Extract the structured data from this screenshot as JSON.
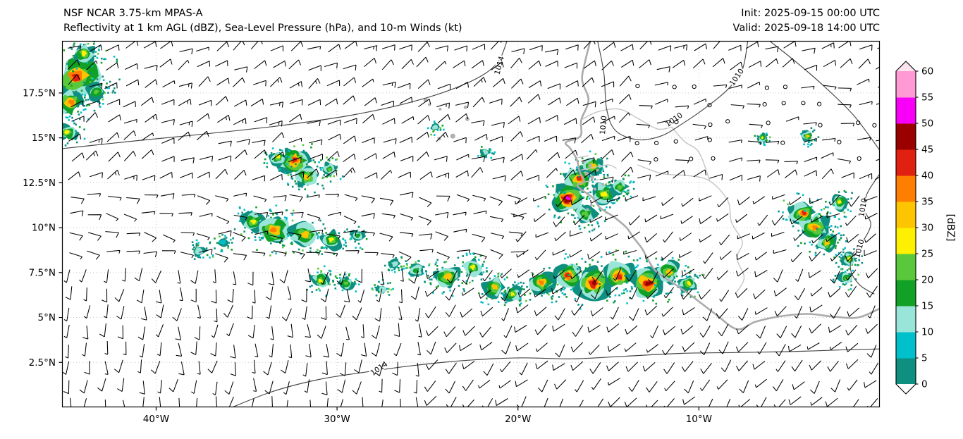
{
  "header": {
    "model": "NSF NCAR 3.75-km MPAS-A",
    "subtitle": "Reflectivity at 1 km AGL (dBZ), Sea-Level Pressure (hPa), and 10-m Winds (kt)",
    "init": "Init: 2025-09-15 00:00 UTC",
    "valid": "Valid: 2025-09-18 14:00 UTC"
  },
  "axes": {
    "lon_min": -45.2,
    "lon_max": 0,
    "lat_min": 0,
    "lat_max": 20.4,
    "x_ticks": [
      {
        "label": "40°W",
        "lon": -40
      },
      {
        "label": "30°W",
        "lon": -30
      },
      {
        "label": "20°W",
        "lon": -20
      },
      {
        "label": "10°W",
        "lon": -10
      }
    ],
    "y_ticks": [
      {
        "label": "17.5°N",
        "lat": 17.5
      },
      {
        "label": "15°N",
        "lat": 15
      },
      {
        "label": "12.5°N",
        "lat": 12.5
      },
      {
        "label": "10°N",
        "lat": 10
      },
      {
        "label": "7.5°N",
        "lat": 7.5
      },
      {
        "label": "5°N",
        "lat": 5
      },
      {
        "label": "2.5°N",
        "lat": 2.5
      }
    ]
  },
  "colorbar": {
    "label": "[dBZ]",
    "tick_values": [
      0,
      5,
      10,
      15,
      20,
      25,
      30,
      35,
      40,
      45,
      50,
      55,
      60
    ],
    "segment_colors": [
      "#0e8f80",
      "#00c0cc",
      "#9ae5da",
      "#12a127",
      "#59c93b",
      "#fdf000",
      "#fdc500",
      "#fd7e00",
      "#e02010",
      "#9a0000",
      "#f800f8",
      "#ff9ad5"
    ],
    "under_color": "#ffffff",
    "over_color": "#fbe3ee"
  },
  "chart_data": {
    "type": "heatmap",
    "title": "Reflectivity at 1 km AGL (dBZ), Sea-Level Pressure (hPa), and 10-m Winds (kt)",
    "units": {
      "reflectivity": "dBZ",
      "pressure": "hPa",
      "wind": "kt"
    },
    "reflectivity_range_dbz": [
      0,
      60
    ],
    "domain": {
      "lon": [
        -45.2,
        0
      ],
      "lat": [
        0,
        20.4
      ]
    },
    "isobars": [
      {
        "value": 1014,
        "points": [
          [
            -45.2,
            14.4
          ],
          [
            -41,
            14.85
          ],
          [
            -37,
            15.25
          ],
          [
            -33,
            15.7
          ],
          [
            -29,
            16.3
          ],
          [
            -25.5,
            17.1
          ],
          [
            -22.7,
            18.1
          ],
          [
            -21.2,
            19.1
          ],
          [
            -20.6,
            20.4
          ]
        ],
        "labels": [
          {
            "lon": -20.9,
            "lat": 19.0,
            "rot": -75
          }
        ]
      },
      {
        "value": 1010,
        "points": [
          [
            -15.6,
            20.4
          ],
          [
            -15.25,
            18.6
          ],
          [
            -15.1,
            16.6
          ],
          [
            -14.6,
            15.4
          ],
          [
            -13.4,
            14.9
          ],
          [
            -12.1,
            15.1
          ],
          [
            -10.9,
            15.8
          ],
          [
            -9.6,
            16.7
          ],
          [
            -8.4,
            17.7
          ],
          [
            -7.6,
            18.8
          ],
          [
            -7.3,
            20.4
          ]
        ],
        "labels": [
          {
            "lon": -15.15,
            "lat": 15.7,
            "rot": -85
          },
          {
            "lon": -11.3,
            "lat": 15.9,
            "rot": -35
          },
          {
            "lon": -7.8,
            "lat": 18.3,
            "rot": -55
          }
        ]
      },
      {
        "value": 1010,
        "points": [
          [
            -6.1,
            20.4
          ],
          [
            -4.6,
            19.2
          ],
          [
            -3.0,
            17.8
          ],
          [
            -1.4,
            16.2
          ],
          [
            0,
            14.3
          ]
        ],
        "labels": []
      },
      {
        "value": 1010,
        "points": [
          [
            0,
            13.0
          ],
          [
            -0.7,
            11.9
          ],
          [
            -0.85,
            11.0
          ],
          [
            -0.5,
            10.2
          ],
          [
            -0.9,
            9.3
          ],
          [
            -1.5,
            8.5
          ],
          [
            -1.6,
            7.6
          ],
          [
            -1.1,
            6.8
          ],
          [
            -0.3,
            6.3
          ]
        ],
        "labels": [
          {
            "lon": -0.8,
            "lat": 11.1,
            "rot": -80
          },
          {
            "lon": -1.0,
            "lat": 8.8,
            "rot": -75
          }
        ]
      },
      {
        "value": 1014,
        "points": [
          [
            -35.8,
            0.0
          ],
          [
            -33.5,
            0.9
          ],
          [
            -31,
            1.55
          ],
          [
            -28.5,
            1.95
          ],
          [
            -26,
            2.3
          ],
          [
            -23,
            2.6
          ],
          [
            -20,
            2.75
          ],
          [
            -17,
            2.7
          ],
          [
            -14,
            2.85
          ],
          [
            -11,
            3.0
          ],
          [
            -8,
            3.05
          ],
          [
            -5,
            3.1
          ],
          [
            -2,
            3.2
          ],
          [
            0,
            3.25
          ]
        ],
        "labels": [
          {
            "lon": -27.6,
            "lat": 2.05,
            "rot": -35
          }
        ]
      }
    ],
    "storm_clusters": [
      {
        "lon": -44.3,
        "lat": 18.3,
        "r": 1.2,
        "max_dbz": 45
      },
      {
        "lon": -44.85,
        "lat": 17.0,
        "r": 0.8,
        "max_dbz": 40
      },
      {
        "lon": -44.95,
        "lat": 15.3,
        "r": 0.5,
        "max_dbz": 30
      },
      {
        "lon": -44.0,
        "lat": 19.6,
        "r": 0.6,
        "max_dbz": 30
      },
      {
        "lon": -43.3,
        "lat": 17.6,
        "r": 0.5,
        "max_dbz": 25
      },
      {
        "lon": -32.4,
        "lat": 13.7,
        "r": 0.75,
        "max_dbz": 45
      },
      {
        "lon": -31.7,
        "lat": 12.9,
        "r": 0.6,
        "max_dbz": 35
      },
      {
        "lon": -30.4,
        "lat": 13.3,
        "r": 0.4,
        "max_dbz": 25
      },
      {
        "lon": -33.3,
        "lat": 13.9,
        "r": 0.4,
        "max_dbz": 30
      },
      {
        "lon": -34.6,
        "lat": 10.4,
        "r": 0.6,
        "max_dbz": 30
      },
      {
        "lon": -33.4,
        "lat": 9.9,
        "r": 0.8,
        "max_dbz": 40
      },
      {
        "lon": -31.9,
        "lat": 9.6,
        "r": 0.7,
        "max_dbz": 35
      },
      {
        "lon": -30.3,
        "lat": 9.3,
        "r": 0.55,
        "max_dbz": 30
      },
      {
        "lon": -28.9,
        "lat": 9.5,
        "r": 0.4,
        "max_dbz": 20
      },
      {
        "lon": -30.9,
        "lat": 7.1,
        "r": 0.5,
        "max_dbz": 30
      },
      {
        "lon": -29.5,
        "lat": 6.9,
        "r": 0.4,
        "max_dbz": 25
      },
      {
        "lon": -27.5,
        "lat": 6.6,
        "r": 0.3,
        "max_dbz": 15
      },
      {
        "lon": -26.8,
        "lat": 8.0,
        "r": 0.3,
        "max_dbz": 15
      },
      {
        "lon": -25.6,
        "lat": 7.6,
        "r": 0.45,
        "max_dbz": 20
      },
      {
        "lon": -23.9,
        "lat": 7.3,
        "r": 0.65,
        "max_dbz": 35
      },
      {
        "lon": -22.5,
        "lat": 7.8,
        "r": 0.55,
        "max_dbz": 30
      },
      {
        "lon": -21.3,
        "lat": 6.7,
        "r": 0.6,
        "max_dbz": 35
      },
      {
        "lon": -20.3,
        "lat": 6.3,
        "r": 0.45,
        "max_dbz": 30
      },
      {
        "lon": -17.35,
        "lat": 11.6,
        "r": 0.8,
        "max_dbz": 55
      },
      {
        "lon": -16.7,
        "lat": 12.7,
        "r": 0.7,
        "max_dbz": 45
      },
      {
        "lon": -15.9,
        "lat": 13.35,
        "r": 0.55,
        "max_dbz": 35
      },
      {
        "lon": -15.2,
        "lat": 11.9,
        "r": 0.65,
        "max_dbz": 30
      },
      {
        "lon": -16.2,
        "lat": 10.8,
        "r": 0.55,
        "max_dbz": 25
      },
      {
        "lon": -14.4,
        "lat": 12.3,
        "r": 0.45,
        "max_dbz": 25
      },
      {
        "lon": -18.6,
        "lat": 6.9,
        "r": 0.65,
        "max_dbz": 40
      },
      {
        "lon": -17.2,
        "lat": 7.35,
        "r": 0.75,
        "max_dbz": 45
      },
      {
        "lon": -15.9,
        "lat": 6.9,
        "r": 0.85,
        "max_dbz": 50
      },
      {
        "lon": -14.4,
        "lat": 7.5,
        "r": 0.75,
        "max_dbz": 45
      },
      {
        "lon": -13.0,
        "lat": 7.0,
        "r": 0.85,
        "max_dbz": 50
      },
      {
        "lon": -11.7,
        "lat": 7.45,
        "r": 0.6,
        "max_dbz": 35
      },
      {
        "lon": -10.6,
        "lat": 6.9,
        "r": 0.5,
        "max_dbz": 30
      },
      {
        "lon": -4.35,
        "lat": 10.9,
        "r": 0.65,
        "max_dbz": 45
      },
      {
        "lon": -3.6,
        "lat": 10.0,
        "r": 0.75,
        "max_dbz": 40
      },
      {
        "lon": -2.9,
        "lat": 9.2,
        "r": 0.55,
        "max_dbz": 35
      },
      {
        "lon": -2.2,
        "lat": 11.4,
        "r": 0.45,
        "max_dbz": 30
      },
      {
        "lon": -1.7,
        "lat": 8.3,
        "r": 0.4,
        "max_dbz": 30
      },
      {
        "lon": -1.9,
        "lat": 7.2,
        "r": 0.35,
        "max_dbz": 25
      },
      {
        "lon": -4.0,
        "lat": 15.1,
        "r": 0.3,
        "max_dbz": 35
      },
      {
        "lon": -6.5,
        "lat": 15.0,
        "r": 0.25,
        "max_dbz": 30
      },
      {
        "lon": -21.8,
        "lat": 14.2,
        "r": 0.25,
        "max_dbz": 15
      },
      {
        "lon": -24.6,
        "lat": 15.6,
        "r": 0.2,
        "max_dbz": 15
      },
      {
        "lon": -37.6,
        "lat": 8.7,
        "r": 0.4,
        "max_dbz": 12
      },
      {
        "lon": -36.3,
        "lat": 9.2,
        "r": 0.3,
        "max_dbz": 10
      }
    ],
    "wind": {
      "units": "kt",
      "barb_convention": "half barb = 5 kt, full barb = 10 kt, circle = calm",
      "regions": [
        {
          "name": "light-variable-sahel",
          "lon": [
            -14,
            0
          ],
          "lat": [
            13,
            18.6
          ],
          "dir_from": 80,
          "speed": 3
        },
        {
          "name": "northeast-trades",
          "lon": [
            -45.2,
            0
          ],
          "lat": [
            12.5,
            20.4
          ],
          "dir_from": 60,
          "speed": 10
        },
        {
          "name": "mid-atlantic-easterlies",
          "lon": [
            -45.2,
            -20
          ],
          "lat": [
            8,
            12.5
          ],
          "dir_from": 95,
          "speed": 7
        },
        {
          "name": "monsoon-westerlies",
          "lon": [
            -20,
            0
          ],
          "lat": [
            8,
            12.5
          ],
          "dir_from": 235,
          "speed": 6
        },
        {
          "name": "south-atlantic-southerlies",
          "lon": [
            -45.2,
            -25
          ],
          "lat": [
            0,
            8
          ],
          "dir_from": 185,
          "speed": 8
        },
        {
          "name": "southwest-monsoon",
          "lon": [
            -25,
            0
          ],
          "lat": [
            0,
            8
          ],
          "dir_from": 220,
          "speed": 9
        }
      ]
    }
  },
  "map": {
    "coastlines": [
      {
        "name": "west-africa-coast",
        "points": [
          [
            -16.0,
            20.4
          ],
          [
            -16.3,
            19.2
          ],
          [
            -16.45,
            18.2
          ],
          [
            -16.1,
            17.1
          ],
          [
            -16.5,
            16.0
          ],
          [
            -16.55,
            15.1
          ],
          [
            -17.35,
            14.75
          ],
          [
            -17.1,
            14.4
          ],
          [
            -16.75,
            13.8
          ],
          [
            -16.6,
            13.15
          ],
          [
            -16.35,
            12.6
          ],
          [
            -16.7,
            12.3
          ],
          [
            -15.9,
            11.7
          ],
          [
            -15.45,
            11.1
          ],
          [
            -14.7,
            10.6
          ],
          [
            -14.0,
            10.0
          ],
          [
            -13.65,
            9.5
          ],
          [
            -13.15,
            8.85
          ],
          [
            -12.9,
            8.4
          ],
          [
            -12.4,
            7.6
          ],
          [
            -11.4,
            6.9
          ],
          [
            -10.4,
            6.2
          ],
          [
            -9.1,
            5.2
          ],
          [
            -7.9,
            4.35
          ],
          [
            -6.9,
            4.75
          ],
          [
            -5.6,
            5.05
          ],
          [
            -4.0,
            5.2
          ],
          [
            -2.6,
            5.05
          ],
          [
            -1.2,
            5.0
          ],
          [
            0.0,
            5.5
          ]
        ]
      }
    ],
    "borders": [
      {
        "name": "senegal-river",
        "points": [
          [
            -16.5,
            16.0
          ],
          [
            -15.6,
            16.45
          ],
          [
            -14.4,
            16.6
          ],
          [
            -13.4,
            16.1
          ],
          [
            -12.3,
            15.5
          ],
          [
            -11.5,
            15.6
          ]
        ]
      },
      {
        "name": "gambia-river",
        "points": [
          [
            -16.55,
            13.2
          ],
          [
            -15.8,
            13.35
          ],
          [
            -15.0,
            13.5
          ],
          [
            -14.55,
            13.3
          ]
        ]
      },
      {
        "name": "casamance-river",
        "points": [
          [
            -16.3,
            12.55
          ],
          [
            -15.4,
            12.7
          ]
        ]
      },
      {
        "name": "saloum-estuary",
        "points": [
          [
            -16.7,
            13.9
          ],
          [
            -16.1,
            14.0
          ]
        ]
      },
      {
        "name": "inland-border-a",
        "points": [
          [
            -13.4,
            13.5
          ],
          [
            -12.0,
            13.0
          ],
          [
            -10.6,
            12.9
          ],
          [
            -9.4,
            12.6
          ],
          [
            -8.4,
            11.5
          ],
          [
            -8.2,
            10.3
          ],
          [
            -7.6,
            9.2
          ],
          [
            -7.9,
            8.3
          ],
          [
            -7.5,
            7.2
          ],
          [
            -8.0,
            6.3
          ]
        ]
      },
      {
        "name": "inland-border-b",
        "points": [
          [
            -11.5,
            15.6
          ],
          [
            -10.8,
            14.8
          ],
          [
            -10.0,
            14.2
          ],
          [
            -9.4,
            12.6
          ]
        ]
      }
    ],
    "islands": [
      {
        "lon": -25.1,
        "lat": 17.1,
        "r": 3
      },
      {
        "lon": -24.9,
        "lat": 16.85,
        "r": 2
      },
      {
        "lon": -24.3,
        "lat": 16.6,
        "r": 2
      },
      {
        "lon": -22.9,
        "lat": 16.7,
        "r": 2.5
      },
      {
        "lon": -22.8,
        "lat": 16.05,
        "r": 3
      },
      {
        "lon": -23.6,
        "lat": 15.1,
        "r": 3.5
      },
      {
        "lon": -24.35,
        "lat": 14.95,
        "r": 2.5
      },
      {
        "lon": -15.95,
        "lat": 11.25,
        "r": 2
      },
      {
        "lon": -16.15,
        "lat": 11.05,
        "r": 1.5
      },
      {
        "lon": -16.2,
        "lat": 13.0,
        "r": 3
      },
      {
        "lon": -15.9,
        "lat": 12.8,
        "r": 2.5
      },
      {
        "lon": -16.0,
        "lat": 13.45,
        "r": 2.5
      },
      {
        "lon": -15.6,
        "lat": 13.2,
        "r": 2
      },
      {
        "lon": -16.35,
        "lat": 13.7,
        "r": 2.2
      },
      {
        "lon": -15.3,
        "lat": 12.4,
        "r": 2
      },
      {
        "lon": -15.75,
        "lat": 12.15,
        "r": 2.2
      }
    ]
  }
}
